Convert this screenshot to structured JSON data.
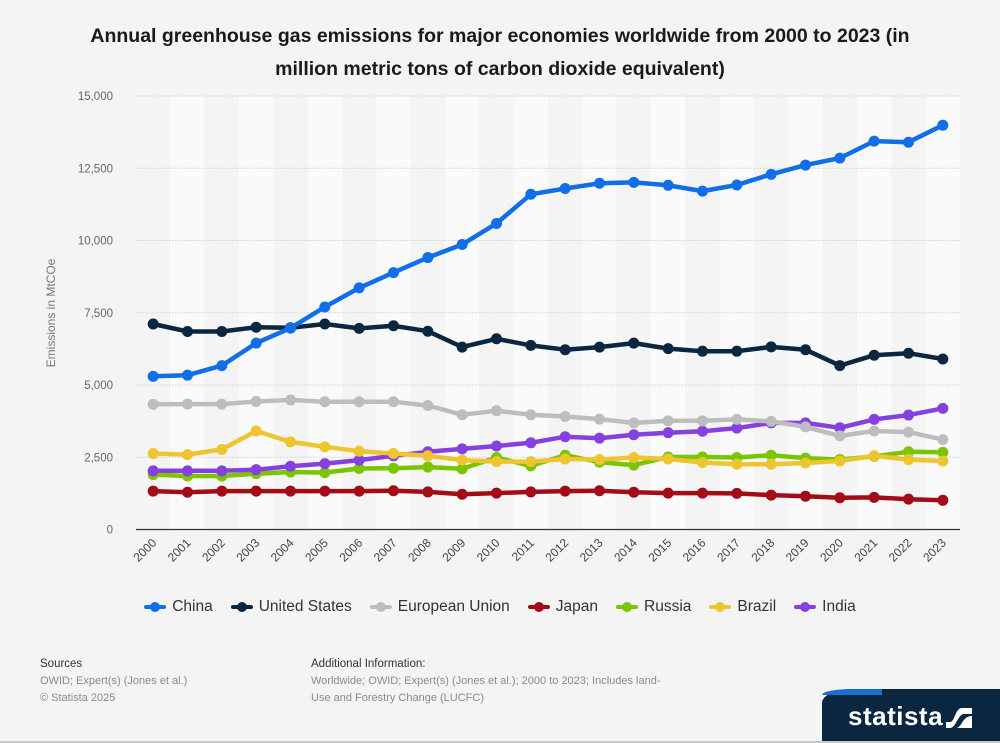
{
  "chart_data": {
    "type": "line",
    "title": "Annual greenhouse gas emissions for major economies worldwide from 2000 to 2023 (in million metric tons of carbon dioxide equivalent)",
    "xlabel": "",
    "ylabel": "Emissions in MtCOe",
    "ylim": [
      0,
      15000
    ],
    "yticks": [
      0,
      2500,
      5000,
      7500,
      10000,
      12500,
      15000
    ],
    "ytick_labels": [
      "0",
      "2,500",
      "5,000",
      "7,500",
      "10,000",
      "12,500",
      "15,000"
    ],
    "grid": true,
    "legend_position": "bottom",
    "categories": [
      "2000",
      "2001",
      "2002",
      "2003",
      "2004",
      "2005",
      "2006",
      "2007",
      "2008",
      "2009",
      "2010",
      "2011",
      "2012",
      "2013",
      "2014",
      "2015",
      "2016",
      "2017",
      "2018",
      "2019",
      "2020",
      "2021",
      "2022",
      "2023"
    ],
    "series": [
      {
        "name": "China",
        "color": "#0f6ee8",
        "values": [
          5300,
          5340,
          5670,
          6450,
          6970,
          7700,
          8360,
          8890,
          9410,
          9860,
          10590,
          11600,
          11800,
          11980,
          12010,
          11910,
          11710,
          11920,
          12290,
          12610,
          12850,
          13440,
          13400,
          13990
        ]
      },
      {
        "name": "United States",
        "color": "#0b2641",
        "values": [
          7110,
          6850,
          6850,
          7000,
          6980,
          7110,
          6960,
          7050,
          6860,
          6310,
          6600,
          6370,
          6220,
          6310,
          6450,
          6260,
          6170,
          6170,
          6320,
          6220,
          5670,
          6030,
          6100,
          5900
        ]
      },
      {
        "name": "European Union",
        "color": "#bdbdbd",
        "values": [
          4330,
          4340,
          4340,
          4430,
          4480,
          4420,
          4420,
          4420,
          4290,
          3970,
          4110,
          3970,
          3910,
          3820,
          3690,
          3760,
          3760,
          3810,
          3740,
          3550,
          3240,
          3410,
          3370,
          3110
        ]
      },
      {
        "name": "Japan",
        "color": "#a30c16",
        "values": [
          1330,
          1290,
          1330,
          1330,
          1330,
          1330,
          1330,
          1340,
          1300,
          1220,
          1260,
          1300,
          1330,
          1340,
          1290,
          1260,
          1260,
          1250,
          1190,
          1150,
          1100,
          1110,
          1050,
          1010
        ]
      },
      {
        "name": "Russia",
        "color": "#79c500",
        "values": [
          1900,
          1850,
          1850,
          1930,
          1990,
          1970,
          2110,
          2120,
          2160,
          2100,
          2490,
          2200,
          2570,
          2330,
          2230,
          2510,
          2510,
          2490,
          2570,
          2470,
          2420,
          2530,
          2690,
          2670
        ]
      },
      {
        "name": "Brazil",
        "color": "#ecc531",
        "values": [
          2630,
          2590,
          2770,
          3410,
          3030,
          2860,
          2710,
          2630,
          2550,
          2400,
          2350,
          2350,
          2440,
          2420,
          2490,
          2440,
          2320,
          2260,
          2260,
          2300,
          2370,
          2550,
          2420,
          2370
        ]
      },
      {
        "name": "India",
        "color": "#8640e0",
        "values": [
          2030,
          2030,
          2030,
          2070,
          2190,
          2280,
          2400,
          2550,
          2690,
          2790,
          2890,
          3000,
          3210,
          3160,
          3280,
          3350,
          3400,
          3510,
          3690,
          3690,
          3520,
          3810,
          3960,
          4190
        ]
      }
    ]
  },
  "title": "Annual greenhouse gas emissions for major economies worldwide from 2000 to 2023 (in million metric tons of carbon dioxide equivalent)",
  "footer": {
    "sources_heading": "Sources",
    "sources_line1": "OWID; Expert(s) (Jones et al.)",
    "sources_line2": "© Statista 2025",
    "info_heading": "Additional Information:",
    "info_line1": "Worldwide; OWID; Expert(s) (Jones et al.); 2000 to 2023; Includes land-",
    "info_line2": "Use and Forestry Change (LUCFC)"
  },
  "logo": {
    "text": "statista"
  }
}
